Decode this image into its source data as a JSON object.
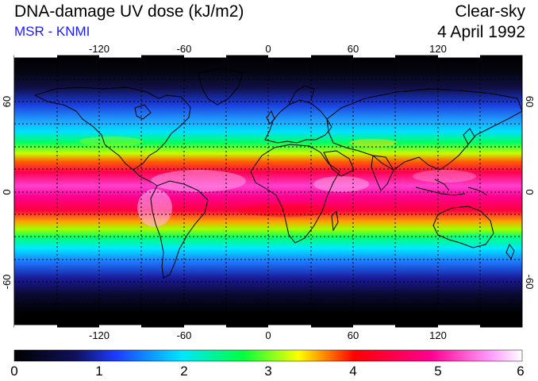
{
  "header": {
    "title": "DNA-damage UV dose (kJ/m2)",
    "subtitle": "MSR - KNMI",
    "mode": "Clear-sky",
    "date": "4 April 1992"
  },
  "map": {
    "lon_ticks": [
      "-120",
      "-60",
      "0",
      "60",
      "120"
    ],
    "lat_ticks_left": [
      "60",
      "0",
      "-60"
    ],
    "lat_ticks_right": [
      "60",
      "0",
      "-60"
    ],
    "gridlines": "dashed"
  },
  "colorbar": {
    "ticks": [
      "0",
      "1",
      "2",
      "3",
      "4",
      "5",
      "6"
    ],
    "range": [
      0,
      6
    ],
    "colors": [
      "#000000",
      "#10105a",
      "#1c3cff",
      "#00e6ff",
      "#00ff40",
      "#ffff00",
      "#ff0000",
      "#ff0090",
      "#ff9fff",
      "#ffffff"
    ]
  }
}
